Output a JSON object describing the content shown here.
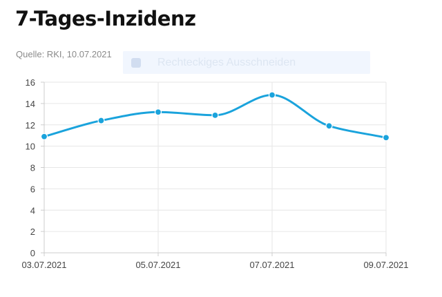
{
  "header": {
    "title": "7-Tages-Inzidenz",
    "subtitle": "Quelle: RKI, 10.07.2021"
  },
  "overlay": {
    "label": "Rechteckiges Ausschneiden",
    "icon": "scissors-icon"
  },
  "colors": {
    "series": "#1aa3dc",
    "grid": "#e6e6e6",
    "axis": "#cccccc"
  },
  "chart_data": {
    "type": "line",
    "title": "7-Tages-Inzidenz",
    "subtitle": "Quelle: RKI, 10.07.2021",
    "xlabel": "",
    "ylabel": "",
    "x": [
      "03.07.2021",
      "04.07.2021",
      "05.07.2021",
      "06.07.2021",
      "07.07.2021",
      "08.07.2021",
      "09.07.2021"
    ],
    "x_tick_labels": [
      "03.07.2021",
      "05.07.2021",
      "07.07.2021",
      "09.07.2021"
    ],
    "series": [
      {
        "values": [
          10.9,
          12.4,
          13.2,
          12.9,
          14.8,
          11.9,
          10.8
        ]
      }
    ],
    "ylim": [
      0,
      16
    ],
    "y_ticks": [
      0,
      2,
      4,
      6,
      8,
      10,
      12,
      14,
      16
    ],
    "grid": true,
    "legend": false,
    "curve": "smooth"
  }
}
